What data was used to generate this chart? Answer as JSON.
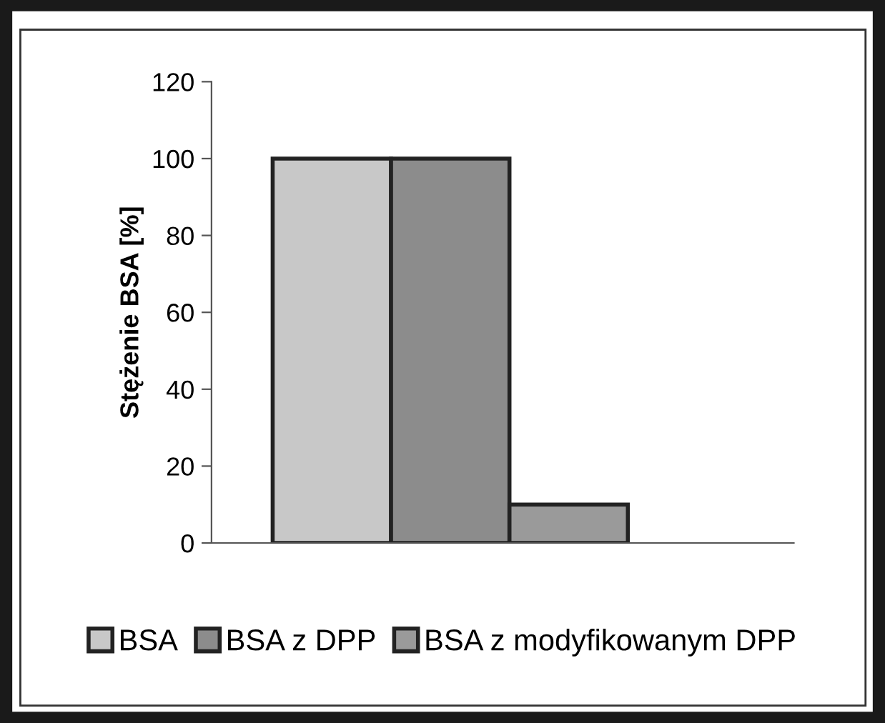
{
  "chart_data": {
    "type": "bar",
    "ylabel": "Stężenie BSA [%]",
    "categories": [
      null
    ],
    "series": [
      {
        "name": "BSA",
        "color": "#c8c8c8",
        "values": [
          100
        ]
      },
      {
        "name": "BSA z DPP",
        "color": "#8c8c8c",
        "values": [
          100
        ]
      },
      {
        "name": "BSA z modyfikowanym DPP",
        "color": "#9a9a9a",
        "values": [
          10
        ]
      }
    ],
    "ylim": [
      0,
      120
    ],
    "yticks": [
      0,
      20,
      40,
      60,
      80,
      100,
      120
    ],
    "grid": false,
    "legend": "bottom"
  }
}
